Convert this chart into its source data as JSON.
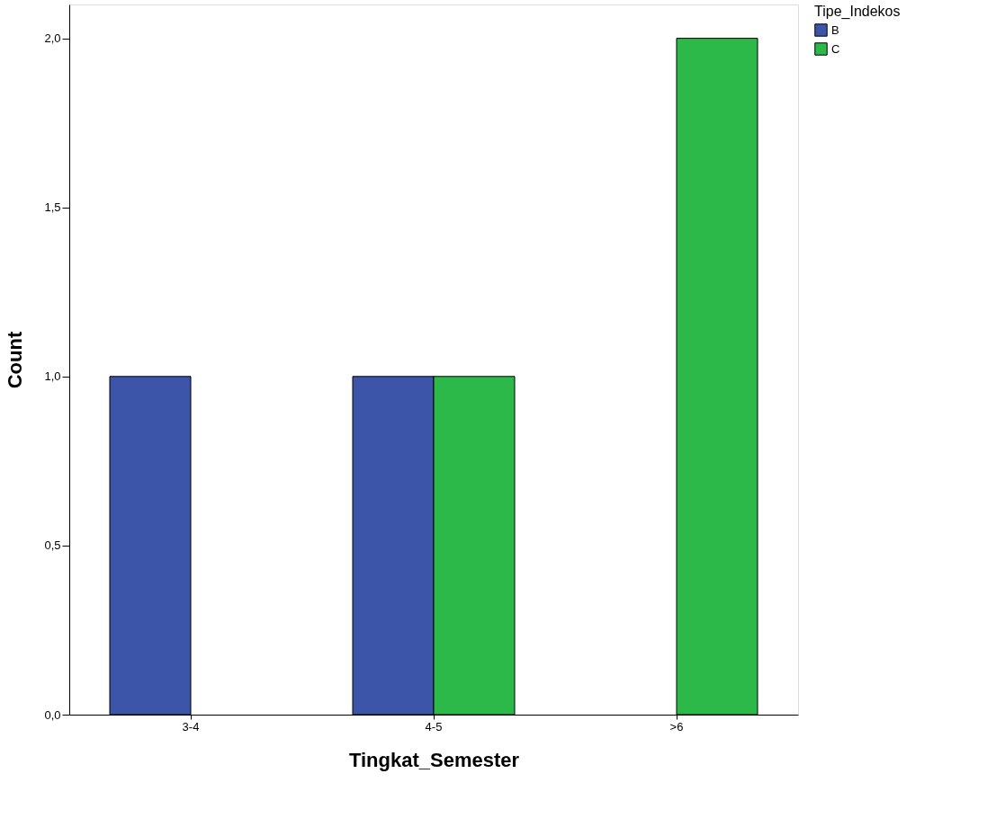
{
  "chart_data": {
    "type": "bar",
    "xlabel": "Tingkat_Semester",
    "ylabel": "Count",
    "legend_title": "Tipe_Indekos",
    "categories": [
      "3-4",
      "4-5",
      ">6"
    ],
    "series": [
      {
        "name": "B",
        "color": "#3d55a8",
        "values": [
          1,
          1,
          null
        ]
      },
      {
        "name": "C",
        "color": "#2db84a",
        "values": [
          null,
          1,
          2
        ]
      }
    ],
    "ylim": [
      0,
      2.1
    ],
    "yticks": [
      {
        "value": 0,
        "label": "0,0"
      },
      {
        "value": 0.5,
        "label": "0,5"
      },
      {
        "value": 1,
        "label": "1,0"
      },
      {
        "value": 1.5,
        "label": "1,5"
      },
      {
        "value": 2,
        "label": "2,0"
      }
    ],
    "grid": false,
    "legend": "top right"
  }
}
